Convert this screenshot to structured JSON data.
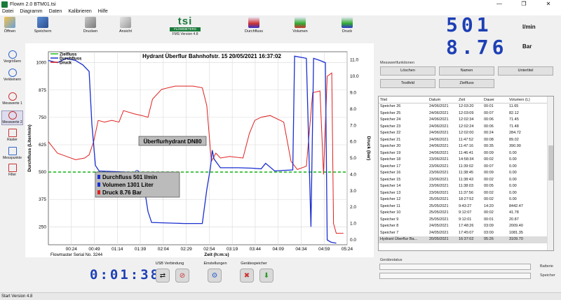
{
  "window": {
    "title": "Flowm 2.0 BTM01.tsi",
    "minimize": "—",
    "restore": "❐",
    "close": "✕"
  },
  "menu": [
    "Datei",
    "Diagramm",
    "Daten",
    "Kalibrieren",
    "Hilfe"
  ],
  "toolbar": {
    "open": "Öffnen",
    "save": "Speichern",
    "print": "Drucken",
    "view": "Ansicht",
    "flow": "Durchfluss",
    "volume": "Volumen",
    "pressure": "Druck"
  },
  "logo": {
    "brand": "tsi",
    "sub": "FLOWMETERS",
    "version": "FMS Version 4.8"
  },
  "readout": {
    "flow_value": "501",
    "flow_unit": "l/min",
    "pressure_value": "8.76",
    "pressure_unit": "Bar"
  },
  "sidebar": [
    "Vergrößern",
    "Verkleinern",
    "Messwerte 1",
    "Messwerte 2",
    "Raster",
    "Messpunkte",
    "Filter"
  ],
  "chart_data": {
    "type": "line",
    "title": "Hydrant Überflur Bahnhofstr. 15 20/05/2021 16:37:02",
    "xlabel": "Zeit (h:m:s)",
    "ylabel_left": "Durchfluss (Liter/min)",
    "ylabel_right": "Druck (bar)",
    "x_ticks": [
      "00:24",
      "00:49",
      "01:14",
      "01:39",
      "02:04",
      "02:29",
      "02:54",
      "03:19",
      "03:44",
      "04:09",
      "04:34",
      "04:59",
      "05:24"
    ],
    "y_left_ticks": [
      250,
      375,
      500,
      625,
      750,
      875,
      1000
    ],
    "y_right_ticks": [
      "0.0",
      "1.0",
      "2.0",
      "3.0",
      "4.0",
      "5.0",
      "6.0",
      "7.0",
      "8.0",
      "9.0",
      "10.0",
      "11.0"
    ],
    "y_left_range": [
      168,
      1050
    ],
    "y_right_range": [
      -0.3,
      11.5
    ],
    "x_range_s": [
      0,
      330
    ],
    "legend": [
      "Zielfluss",
      "Durchfluss",
      "Druck"
    ],
    "colors": {
      "target": "#22bb22",
      "flow": "#1a2fd0",
      "pressure": "#e02020"
    },
    "target_flow": 500,
    "serial": "Flowmaster Serial No. 3244",
    "annotation_title": "Überflurhydrant DN80",
    "annotation_lines": [
      "Durchfluss 501 l/min",
      "Volumen 1301 Liter",
      "Druck 8.76 Bar"
    ],
    "flow_series": [
      [
        0,
        1010
      ],
      [
        10,
        1000
      ],
      [
        20,
        1020
      ],
      [
        30,
        1010
      ],
      [
        38,
        990
      ],
      [
        45,
        960
      ],
      [
        48,
        720
      ],
      [
        52,
        530
      ],
      [
        56,
        505
      ],
      [
        75,
        502
      ],
      [
        85,
        500
      ],
      [
        97,
        498
      ],
      [
        104,
        480
      ],
      [
        110,
        320
      ],
      [
        114,
        270
      ],
      [
        150,
        265
      ],
      [
        170,
        265
      ],
      [
        175,
        420
      ],
      [
        179,
        520
      ],
      [
        181,
        600
      ],
      [
        183,
        560
      ],
      [
        190,
        520
      ],
      [
        210,
        520
      ],
      [
        225,
        518
      ],
      [
        235,
        515
      ],
      [
        240,
        540
      ],
      [
        250,
        505
      ],
      [
        260,
        508
      ],
      [
        270,
        510
      ],
      [
        272,
        1030
      ],
      [
        285,
        1020
      ],
      [
        290,
        250
      ],
      [
        293,
        1020
      ],
      [
        300,
        1010
      ],
      [
        306,
        1000
      ],
      [
        308,
        190
      ],
      [
        312,
        180
      ],
      [
        318,
        175
      ]
    ],
    "pressure_series": [
      [
        0,
        6.0
      ],
      [
        10,
        5.3
      ],
      [
        20,
        5.1
      ],
      [
        30,
        4.9
      ],
      [
        40,
        5.0
      ],
      [
        45,
        5.2
      ],
      [
        50,
        6.0
      ],
      [
        55,
        7.3
      ],
      [
        62,
        7.2
      ],
      [
        70,
        7.3
      ],
      [
        78,
        7.2
      ],
      [
        83,
        7.9
      ],
      [
        95,
        7.7
      ],
      [
        103,
        7.6
      ],
      [
        110,
        7.5
      ],
      [
        115,
        8.6
      ],
      [
        125,
        9.2
      ],
      [
        140,
        9.4
      ],
      [
        160,
        9.4
      ],
      [
        170,
        9.3
      ],
      [
        175,
        8.2
      ],
      [
        180,
        4.8
      ],
      [
        185,
        5.3
      ],
      [
        190,
        5.0
      ],
      [
        200,
        5.1
      ],
      [
        215,
        5.0
      ],
      [
        222,
        6.5
      ],
      [
        228,
        7.3
      ],
      [
        235,
        7.5
      ],
      [
        245,
        7.6
      ],
      [
        260,
        7.2
      ],
      [
        268,
        4.8
      ],
      [
        275,
        4.3
      ],
      [
        285,
        4.5
      ],
      [
        292,
        9.0
      ],
      [
        300,
        9.1
      ],
      [
        304,
        4.0
      ],
      [
        308,
        10.0
      ],
      [
        313,
        10.2
      ],
      [
        315,
        1.0
      ],
      [
        318,
        0.4
      ],
      [
        322,
        0.4
      ],
      [
        326,
        0.4
      ]
    ]
  },
  "functions": {
    "header": "Messwertfunktionen",
    "buttons": [
      "Löschen",
      "Namen",
      "Untertitel",
      "Testfeld",
      "Zielfluss"
    ]
  },
  "table": {
    "headers": [
      "Titel",
      "Datum",
      "Zeit",
      "Dauer",
      "Volumen (L)"
    ],
    "rows": [
      [
        "Speicher 26",
        "24/06/2021",
        "12:03:20",
        "00:01",
        "11.65"
      ],
      [
        "Speicher 25",
        "24/06/2021",
        "12:03:09",
        "00:07",
        "82.12"
      ],
      [
        "Speicher 24",
        "24/06/2021",
        "12:02:34",
        "00:06",
        "71.45"
      ],
      [
        "Speicher 23",
        "24/06/2021",
        "12:02:24",
        "00:06",
        "71.48"
      ],
      [
        "Speicher 22",
        "24/06/2021",
        "12:02:00",
        "00:24",
        "284.72"
      ],
      [
        "Speicher 21",
        "24/06/2021",
        "11:47:52",
        "00:08",
        "89.02"
      ],
      [
        "Speicher 20",
        "24/06/2021",
        "11:47:16",
        "00:35",
        "390.90"
      ],
      [
        "Speicher 19",
        "24/06/2021",
        "11:46:41",
        "00:09",
        "0.00"
      ],
      [
        "Speicher 18",
        "23/06/2021",
        "14:58:34",
        "00:02",
        "0.00"
      ],
      [
        "Speicher 17",
        "23/06/2021",
        "11:39:02",
        "00:07",
        "0.00"
      ],
      [
        "Speicher 16",
        "23/06/2021",
        "11:38:45",
        "00:09",
        "0.00"
      ],
      [
        "Speicher 15",
        "23/06/2021",
        "11:38:43",
        "00:02",
        "0.00"
      ],
      [
        "Speicher 14",
        "23/06/2021",
        "11:38:03",
        "00:05",
        "0.00"
      ],
      [
        "Speicher 13",
        "23/06/2021",
        "11:37:56",
        "00:02",
        "0.00"
      ],
      [
        "Speicher 12",
        "25/05/2021",
        "18:27:52",
        "00:02",
        "0.00"
      ],
      [
        "Speicher 11",
        "25/05/2021",
        "9:43:27",
        "14:20",
        "8442.47"
      ],
      [
        "Speicher 10",
        "25/05/2021",
        "9:12:07",
        "00:02",
        "41.78"
      ],
      [
        "Speicher 9",
        "25/05/2021",
        "9:12:01",
        "00:01",
        "20.87"
      ],
      [
        "Speicher 8",
        "24/05/2021",
        "17:48:26",
        "03:09",
        "2009.40"
      ],
      [
        "Speicher 7",
        "24/05/2021",
        "17:45:07",
        "03:00",
        "1081.35"
      ],
      [
        "Hydrant Überflur Ba...",
        "20/05/2021",
        "16:37:02",
        "05:26",
        "3109.70"
      ]
    ]
  },
  "status": {
    "header": "Gerätestatus",
    "battery": "Batterie",
    "memory": "Speicher"
  },
  "bottom": {
    "timer": "0:01:38",
    "usb": "USB Verbindung",
    "settings": "Einstellungen",
    "device_memory": "Gerätespeicher"
  },
  "taskbar": "Start Version 4.8"
}
